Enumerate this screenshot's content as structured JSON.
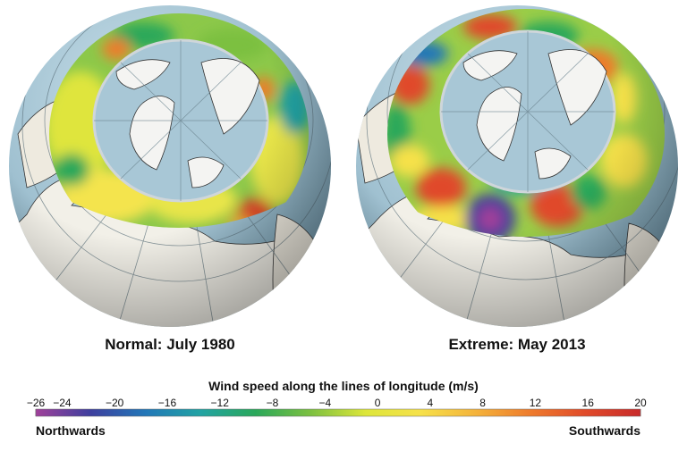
{
  "panels": [
    {
      "caption": "Normal: July 1980"
    },
    {
      "caption": "Extreme: May 2013"
    }
  ],
  "legend": {
    "title": "Wind speed along the lines of longitude (m/s)",
    "ticks": [
      "−26",
      "−24",
      "−20",
      "−16",
      "−12",
      "−8",
      "−4",
      "0",
      "4",
      "8",
      "12",
      "16",
      "20"
    ],
    "min": -26,
    "max": 20,
    "left_label": "Northwards",
    "right_label": "Southwards"
  },
  "colors": {
    "ocean": "#a8c7d6",
    "land": "#f2f0e8",
    "scale": [
      "#a0409a",
      "#3d3f9e",
      "#2277b8",
      "#22a3a3",
      "#2aa85a",
      "#7cc040",
      "#dde63a",
      "#f6e14a",
      "#f4b33b",
      "#ee7b2c",
      "#e04a2a",
      "#c82a2a"
    ]
  }
}
